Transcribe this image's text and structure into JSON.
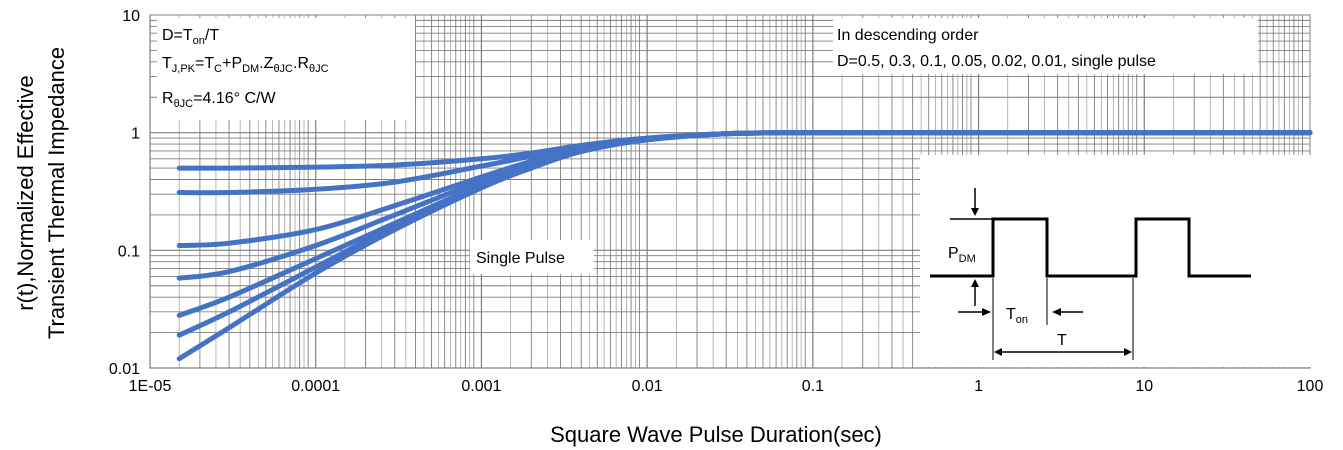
{
  "chart_data": {
    "type": "line",
    "title": "",
    "xlabel": "Square Wave Pulse Duration(sec)",
    "ylabel_line1": "r(t),Normalized Effective",
    "ylabel_line2": "Transient Thermal Impedance",
    "x_scale": "log",
    "y_scale": "log",
    "xlim": [
      1e-05,
      100
    ],
    "ylim": [
      0.01,
      10
    ],
    "x_ticks": [
      {
        "value": 1e-05,
        "label": "1E-05"
      },
      {
        "value": 0.0001,
        "label": "0.0001"
      },
      {
        "value": 0.001,
        "label": "0.001"
      },
      {
        "value": 0.01,
        "label": "0.01"
      },
      {
        "value": 0.1,
        "label": "0.1"
      },
      {
        "value": 1,
        "label": "1"
      },
      {
        "value": 10,
        "label": "10"
      },
      {
        "value": 100,
        "label": "100"
      }
    ],
    "y_ticks": [
      {
        "value": 0.01,
        "label": "0.01"
      },
      {
        "value": 0.1,
        "label": "0.1"
      },
      {
        "value": 1,
        "label": "1"
      },
      {
        "value": 10,
        "label": "10"
      }
    ],
    "grid": true,
    "line_color": "#4472C4",
    "series": [
      {
        "x": [
          1.5e-05,
          3e-05,
          0.0001,
          0.0003,
          0.001,
          0.002,
          0.004,
          0.01,
          0.03,
          0.1,
          1,
          10,
          100
        ],
        "values": [
          0.5,
          0.5,
          0.51,
          0.53,
          0.6,
          0.67,
          0.78,
          0.9,
          0.98,
          1.0,
          1.0,
          1.0,
          1.0
        ]
      },
      {
        "x": [
          1.5e-05,
          3e-05,
          0.0001,
          0.0003,
          0.001,
          0.002,
          0.004,
          0.01,
          0.03,
          0.1,
          1,
          10,
          100
        ],
        "values": [
          0.31,
          0.31,
          0.33,
          0.38,
          0.52,
          0.63,
          0.75,
          0.89,
          0.98,
          1.0,
          1.0,
          1.0,
          1.0
        ]
      },
      {
        "x": [
          1.5e-05,
          3e-05,
          0.0001,
          0.0003,
          0.001,
          0.002,
          0.004,
          0.01,
          0.03,
          0.1,
          1,
          10,
          100
        ],
        "values": [
          0.11,
          0.115,
          0.15,
          0.24,
          0.42,
          0.57,
          0.73,
          0.88,
          0.98,
          1.0,
          1.0,
          1.0,
          1.0
        ]
      },
      {
        "x": [
          1.5e-05,
          3e-05,
          0.0001,
          0.0003,
          0.001,
          0.002,
          0.004,
          0.01,
          0.03,
          0.1,
          1,
          10,
          100
        ],
        "values": [
          0.058,
          0.066,
          0.11,
          0.2,
          0.39,
          0.54,
          0.72,
          0.88,
          0.98,
          1.0,
          1.0,
          1.0,
          1.0
        ]
      },
      {
        "x": [
          1.5e-05,
          3e-05,
          0.0001,
          0.0003,
          0.001,
          0.002,
          0.004,
          0.01,
          0.03,
          0.1,
          1,
          10,
          100
        ],
        "values": [
          0.028,
          0.04,
          0.085,
          0.17,
          0.36,
          0.52,
          0.71,
          0.87,
          0.98,
          1.0,
          1.0,
          1.0,
          1.0
        ]
      },
      {
        "x": [
          1.5e-05,
          3e-05,
          0.0001,
          0.0003,
          0.001,
          0.002,
          0.004,
          0.01,
          0.03,
          0.1,
          1,
          10,
          100
        ],
        "values": [
          0.019,
          0.03,
          0.072,
          0.16,
          0.35,
          0.51,
          0.7,
          0.87,
          0.98,
          1.0,
          1.0,
          1.0,
          1.0
        ]
      },
      {
        "x": [
          1.5e-05,
          3e-05,
          0.0001,
          0.0003,
          0.001,
          0.002,
          0.004,
          0.01,
          0.03,
          0.1,
          1,
          10,
          100
        ],
        "values": [
          0.012,
          0.022,
          0.064,
          0.15,
          0.34,
          0.5,
          0.69,
          0.87,
          0.98,
          1.0,
          1.0,
          1.0,
          1.0
        ]
      }
    ],
    "annotations": {
      "formula_box": {
        "line1_main": "D=T",
        "line1_sub": "on",
        "line1_tail": "/T",
        "line2": [
          {
            "t": "T",
            "sub": false
          },
          {
            "t": "J,PK",
            "sub": true
          },
          {
            "t": "=T",
            "sub": false
          },
          {
            "t": "C",
            "sub": true
          },
          {
            "t": "+P",
            "sub": false
          },
          {
            "t": "DM",
            "sub": true
          },
          {
            "t": ".Z",
            "sub": false
          },
          {
            "t": "θJC",
            "sub": true
          },
          {
            "t": ".R",
            "sub": false
          },
          {
            "t": "θJC",
            "sub": true
          }
        ],
        "line3": [
          {
            "t": "R",
            "sub": false
          },
          {
            "t": "θJC",
            "sub": true
          },
          {
            "t": "=4.16°  C/W",
            "sub": false
          }
        ]
      },
      "order_line1": "In descending order",
      "order_line2": "D=0.5, 0.3, 0.1, 0.05, 0.02, 0.01, single pulse",
      "single_pulse": "Single Pulse",
      "inset": {
        "pdm_main": "P",
        "pdm_sub": "DM",
        "ton_main": "T",
        "ton_sub": "on",
        "period": "T"
      }
    }
  }
}
